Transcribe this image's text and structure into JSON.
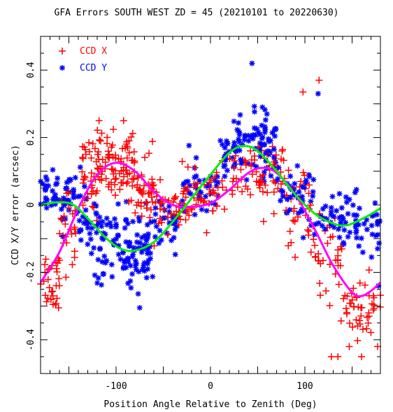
{
  "chart_data": {
    "type": "scatter",
    "title": "GFA Errors SOUTH WEST ZD = 45 (20210101 to 20220630)",
    "xlabel": "Position Angle Relative to Zenith (Deg)",
    "ylabel": "CCD X/Y error (arcsec)",
    "xlim": [
      -180,
      180
    ],
    "ylim": [
      -0.5,
      0.5
    ],
    "xticks": [
      -100,
      0,
      100
    ],
    "xtick_labels": [
      "-100",
      "0",
      "100"
    ],
    "yticks": [
      -0.4,
      -0.2,
      0,
      0.2,
      0.4
    ],
    "ytick_labels": [
      "-0.4",
      "-0.2",
      "0",
      "0.2",
      "0.4"
    ],
    "legend_position": "top-left",
    "series": [
      {
        "name": "CCD X",
        "marker": "plus",
        "color": "#ff0000",
        "clusters": [
          {
            "x_range": [
              -180,
              -160
            ],
            "y_center": -0.22,
            "spread": 0.06,
            "count": 30
          },
          {
            "x_range": [
              -160,
              -140
            ],
            "y_center": -0.06,
            "spread": 0.08,
            "count": 25
          },
          {
            "x_range": [
              -140,
              -120
            ],
            "y_center": 0.08,
            "spread": 0.07,
            "count": 35
          },
          {
            "x_range": [
              -120,
              -80
            ],
            "y_center": 0.12,
            "spread": 0.06,
            "count": 90
          },
          {
            "x_range": [
              -80,
              -60
            ],
            "y_center": 0.05,
            "spread": 0.06,
            "count": 40
          },
          {
            "x_range": [
              -60,
              -30
            ],
            "y_center": -0.01,
            "spread": 0.04,
            "count": 30
          },
          {
            "x_range": [
              -30,
              20
            ],
            "y_center": 0.02,
            "spread": 0.05,
            "count": 50
          },
          {
            "x_range": [
              20,
              80
            ],
            "y_center": 0.09,
            "spread": 0.06,
            "count": 70
          },
          {
            "x_range": [
              80,
              110
            ],
            "y_center": -0.02,
            "spread": 0.07,
            "count": 35
          },
          {
            "x_range": [
              110,
              140
            ],
            "y_center": -0.18,
            "spread": 0.08,
            "count": 35
          },
          {
            "x_range": [
              140,
              180
            ],
            "y_center": -0.3,
            "spread": 0.07,
            "count": 45
          }
        ],
        "outliers": [
          {
            "x": 98,
            "y": 0.335
          },
          {
            "x": 115,
            "y": 0.37
          },
          {
            "x": 128,
            "y": -0.45
          },
          {
            "x": 135,
            "y": -0.45
          },
          {
            "x": 147,
            "y": -0.42
          },
          {
            "x": 160,
            "y": -0.45
          },
          {
            "x": 177,
            "y": -0.42
          },
          {
            "x": -118,
            "y": 0.25
          },
          {
            "x": -92,
            "y": 0.25
          }
        ],
        "fit_curve": {
          "color": "#ff00ff",
          "points": [
            {
              "x": -180,
              "y": -0.23
            },
            {
              "x": -160,
              "y": -0.14
            },
            {
              "x": -140,
              "y": -0.01
            },
            {
              "x": -120,
              "y": 0.09
            },
            {
              "x": -100,
              "y": 0.125
            },
            {
              "x": -80,
              "y": 0.1
            },
            {
              "x": -60,
              "y": 0.04
            },
            {
              "x": -40,
              "y": 0.0
            },
            {
              "x": -20,
              "y": -0.005
            },
            {
              "x": 0,
              "y": 0.005
            },
            {
              "x": 20,
              "y": 0.045
            },
            {
              "x": 40,
              "y": 0.095
            },
            {
              "x": 55,
              "y": 0.11
            },
            {
              "x": 70,
              "y": 0.095
            },
            {
              "x": 90,
              "y": 0.03
            },
            {
              "x": 110,
              "y": -0.07
            },
            {
              "x": 130,
              "y": -0.18
            },
            {
              "x": 150,
              "y": -0.26
            },
            {
              "x": 160,
              "y": -0.27
            },
            {
              "x": 170,
              "y": -0.255
            },
            {
              "x": 180,
              "y": -0.23
            }
          ]
        }
      },
      {
        "name": "CCD Y",
        "marker": "asterisk",
        "color": "#0000ff",
        "clusters": [
          {
            "x_range": [
              -180,
              -140
            ],
            "y_center": 0.02,
            "spread": 0.05,
            "count": 55
          },
          {
            "x_range": [
              -140,
              -120
            ],
            "y_center": -0.06,
            "spread": 0.07,
            "count": 30
          },
          {
            "x_range": [
              -120,
              -60
            ],
            "y_center": -0.13,
            "spread": 0.07,
            "count": 110
          },
          {
            "x_range": [
              -60,
              -30
            ],
            "y_center": -0.05,
            "spread": 0.05,
            "count": 30
          },
          {
            "x_range": [
              -30,
              10
            ],
            "y_center": 0.05,
            "spread": 0.05,
            "count": 40
          },
          {
            "x_range": [
              10,
              70
            ],
            "y_center": 0.17,
            "spread": 0.06,
            "count": 100
          },
          {
            "x_range": [
              70,
              110
            ],
            "y_center": 0.04,
            "spread": 0.06,
            "count": 45
          },
          {
            "x_range": [
              110,
              180
            ],
            "y_center": -0.05,
            "spread": 0.05,
            "count": 75
          }
        ],
        "outliers": [
          {
            "x": 44,
            "y": 0.42
          },
          {
            "x": 114,
            "y": 0.33
          },
          {
            "x": 55,
            "y": 0.29
          },
          {
            "x": -75,
            "y": -0.305
          },
          {
            "x": 178,
            "y": -0.24
          }
        ],
        "fit_curve": {
          "color": "#00ee00",
          "points": [
            {
              "x": -180,
              "y": 0.0
            },
            {
              "x": -160,
              "y": 0.008
            },
            {
              "x": -145,
              "y": 0.0
            },
            {
              "x": -130,
              "y": -0.04
            },
            {
              "x": -110,
              "y": -0.1
            },
            {
              "x": -95,
              "y": -0.13
            },
            {
              "x": -80,
              "y": -0.135
            },
            {
              "x": -60,
              "y": -0.11
            },
            {
              "x": -40,
              "y": -0.05
            },
            {
              "x": -20,
              "y": 0.02
            },
            {
              "x": 0,
              "y": 0.09
            },
            {
              "x": 20,
              "y": 0.155
            },
            {
              "x": 35,
              "y": 0.175
            },
            {
              "x": 50,
              "y": 0.16
            },
            {
              "x": 70,
              "y": 0.1
            },
            {
              "x": 90,
              "y": 0.03
            },
            {
              "x": 110,
              "y": -0.025
            },
            {
              "x": 130,
              "y": -0.055
            },
            {
              "x": 145,
              "y": -0.06
            },
            {
              "x": 165,
              "y": -0.035
            },
            {
              "x": 180,
              "y": -0.01
            }
          ]
        }
      }
    ]
  }
}
